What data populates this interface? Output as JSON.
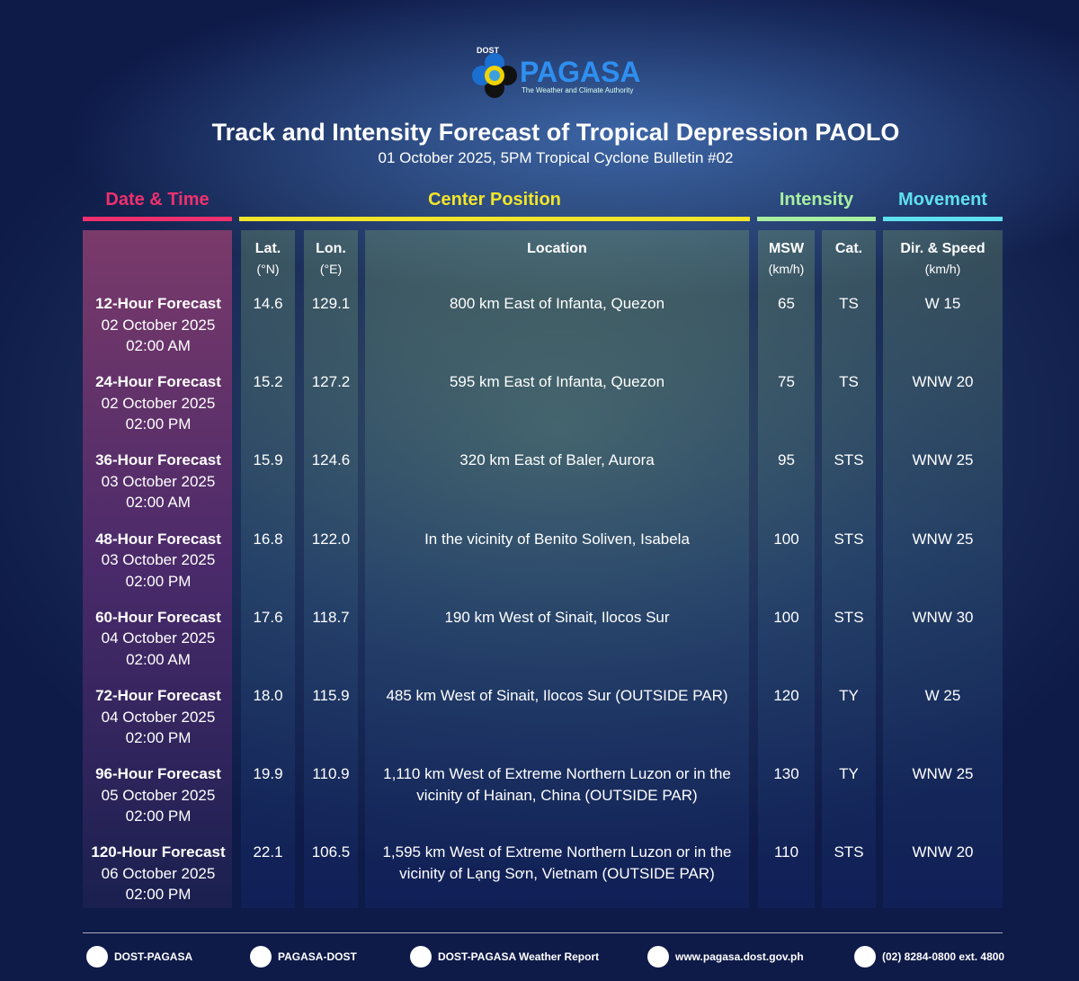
{
  "header": {
    "logo_top": "DOST",
    "logo_name": "PAGASA",
    "logo_tagline": "The Weather and Climate Authority",
    "title": "Track and Intensity Forecast of Tropical Depression PAOLO",
    "subtitle": "01 October 2025, 5PM Tropical Cyclone Bulletin #02"
  },
  "groups": [
    "Date & Time",
    "Center Position",
    "Intensity",
    "Movement"
  ],
  "columns": [
    {
      "name": "Lat.",
      "unit": "(°N)"
    },
    {
      "name": "Lon.",
      "unit": "(°E)"
    },
    {
      "name": "Location"
    },
    {
      "name": "MSW",
      "unit": "(km/h)"
    },
    {
      "name": "Cat."
    },
    {
      "name": "Dir. & Speed",
      "unit": "(km/h)"
    }
  ],
  "rows": [
    {
      "forecast": "12-Hour Forecast",
      "date": "02 October 2025",
      "time": "02:00 AM",
      "lat": "14.6",
      "lon": "129.1",
      "location": "800 km East of Infanta, Quezon",
      "msw": "65",
      "cat": "TS",
      "movement": "W 15"
    },
    {
      "forecast": "24-Hour Forecast",
      "date": "02 October 2025",
      "time": "02:00 PM",
      "lat": "15.2",
      "lon": "127.2",
      "location": "595 km East of Infanta, Quezon",
      "msw": "75",
      "cat": "TS",
      "movement": "WNW 20"
    },
    {
      "forecast": "36-Hour Forecast",
      "date": "03 October 2025",
      "time": "02:00 AM",
      "lat": "15.9",
      "lon": "124.6",
      "location": "320 km East of Baler, Aurora",
      "msw": "95",
      "cat": "STS",
      "movement": "WNW 25"
    },
    {
      "forecast": "48-Hour Forecast",
      "date": "03 October 2025",
      "time": "02:00 PM",
      "lat": "16.8",
      "lon": "122.0",
      "location": "In the vicinity of Benito Soliven, Isabela",
      "msw": "100",
      "cat": "STS",
      "movement": "WNW 25"
    },
    {
      "forecast": "60-Hour Forecast",
      "date": "04 October 2025",
      "time": "02:00 AM",
      "lat": "17.6",
      "lon": "118.7",
      "location": "190 km West of Sinait, Ilocos Sur",
      "msw": "100",
      "cat": "STS",
      "movement": "WNW 30"
    },
    {
      "forecast": "72-Hour Forecast",
      "date": "04 October 2025",
      "time": "02:00 PM",
      "lat": "18.0",
      "lon": "115.9",
      "location": "485 km West of Sinait, Ilocos Sur (OUTSIDE PAR)",
      "msw": "120",
      "cat": "TY",
      "movement": "W 25"
    },
    {
      "forecast": "96-Hour Forecast",
      "date": "05 October 2025",
      "time": "02:00 PM",
      "lat": "19.9",
      "lon": "110.9",
      "location": "1,110 km West of Extreme Northern Luzon or in the vicinity of Hainan, China (OUTSIDE PAR)",
      "msw": "130",
      "cat": "TY",
      "movement": "WNW 25"
    },
    {
      "forecast": "120-Hour Forecast",
      "date": "06 October 2025",
      "time": "02:00 PM",
      "lat": "22.1",
      "lon": "106.5",
      "location": "1,595 km West of Extreme Northern Luzon or in the vicinity of Lạng Sơn, Vietnam (OUTSIDE PAR)",
      "msw": "110",
      "cat": "STS",
      "movement": "WNW 20"
    }
  ],
  "footer": [
    "DOST-PAGASA",
    "PAGASA-DOST",
    "DOST-PAGASA Weather Report",
    "www.pagasa.dost.gov.ph",
    "(02) 8284-0800 ext. 4800"
  ]
}
